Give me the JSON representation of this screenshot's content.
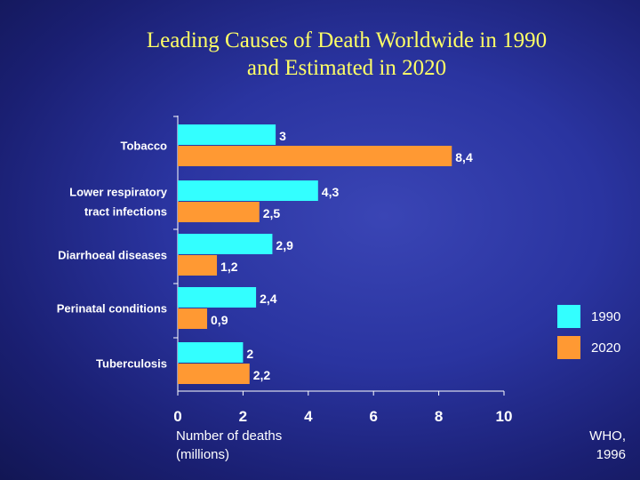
{
  "chart_data": {
    "type": "bar",
    "orientation": "horizontal",
    "title_lines": [
      "Leading Causes of Death Worldwide in 1990",
      "and Estimated in 2020"
    ],
    "categories": [
      [
        "Tobacco"
      ],
      [
        "Lower respiratory",
        "tract infections"
      ],
      [
        "Diarrhoeal diseases"
      ],
      [
        "Perinatal conditions"
      ],
      [
        "Tuberculosis"
      ]
    ],
    "series": [
      {
        "name": "1990",
        "color": "#33ffff",
        "values": [
          3,
          4.3,
          2.9,
          2.4,
          2
        ],
        "labels": [
          "3",
          "4,3",
          "2,9",
          "2,4",
          "2"
        ]
      },
      {
        "name": "2020",
        "color": "#ff9933",
        "values": [
          8.4,
          2.5,
          1.2,
          0.9,
          2.2
        ],
        "labels": [
          "8,4",
          "2,5",
          "1,2",
          "0,9",
          "2,2"
        ]
      }
    ],
    "xlim": [
      0,
      10
    ],
    "xticks": [
      0,
      2,
      4,
      6,
      8,
      10
    ],
    "xlabel_lines": [
      "Number of deaths",
      "(millions)"
    ],
    "legend_position": "right",
    "grid": false
  },
  "source": "WHO,\n1996",
  "colors": {
    "title": "#ffff66",
    "text": "#ffffff",
    "axis": "#ffffff",
    "category_text": "#ffffff",
    "value_label": "#ffffff"
  }
}
